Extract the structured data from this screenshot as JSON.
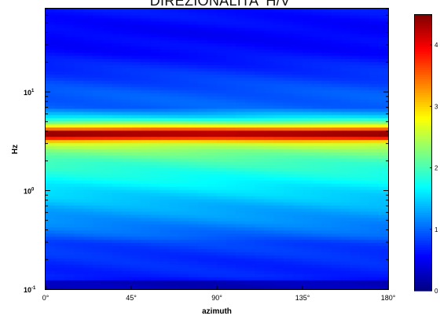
{
  "chart_data": {
    "type": "heatmap",
    "title": "DIREZIONALITA' H/V",
    "xlabel": "azimuth",
    "ylabel": "Hz",
    "x_range": [
      0,
      180
    ],
    "y_range": [
      0.1,
      70
    ],
    "y_scale": "log",
    "x_ticks": [
      "0°",
      "45°",
      "90°",
      "135°",
      "180°"
    ],
    "y_ticks": [
      {
        "base": "10",
        "exp": "-1"
      },
      {
        "base": "10",
        "exp": "0"
      },
      {
        "base": "10",
        "exp": "1"
      }
    ],
    "colorbar": {
      "colormap": "jet",
      "range": [
        0,
        4.5
      ],
      "ticks": [
        "0",
        "1",
        "2",
        "3",
        "4"
      ]
    },
    "profile": {
      "description": "H/V ratio vs frequency (approximately constant across azimuth)",
      "freq_hz": [
        0.1,
        0.12,
        0.13,
        0.2,
        0.3,
        0.35,
        0.5,
        0.7,
        1.0,
        1.5,
        2.0,
        2.5,
        3.0,
        3.3,
        3.6,
        3.9,
        4.2,
        4.7,
        5.5,
        7.0,
        10.0,
        15.0,
        25.0,
        40.0,
        70.0
      ],
      "hv": [
        0.25,
        0.25,
        0.7,
        0.75,
        0.85,
        1.0,
        1.2,
        1.35,
        1.55,
        1.8,
        2.0,
        2.25,
        2.6,
        3.3,
        4.2,
        4.35,
        3.6,
        2.5,
        1.6,
        1.0,
        0.95,
        0.8,
        0.6,
        0.55,
        0.65
      ]
    },
    "grid": false
  }
}
